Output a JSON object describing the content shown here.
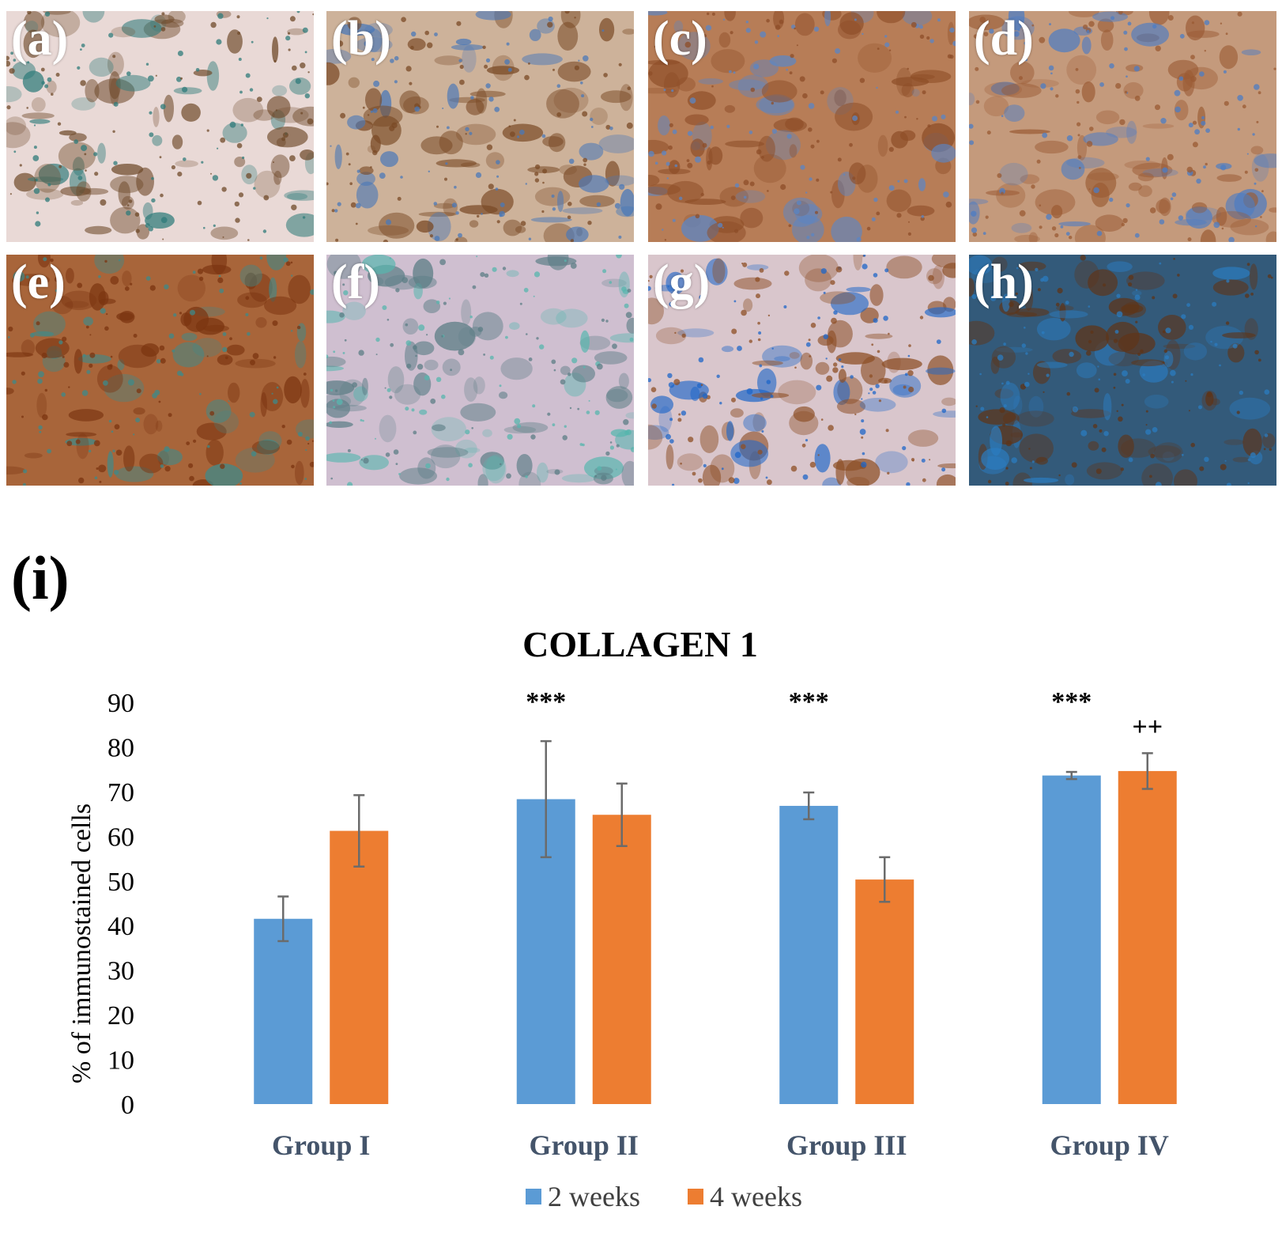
{
  "panels": [
    {
      "label": "(a)",
      "bg": "#e9d9d6",
      "stain": "#6f4a2a",
      "accent": "#2f7b7a"
    },
    {
      "label": "(b)",
      "bg": "#cdb29a",
      "stain": "#7a4a26",
      "accent": "#4a78b8"
    },
    {
      "label": "(c)",
      "bg": "#b77d57",
      "stain": "#8e4e28",
      "accent": "#5a86c6"
    },
    {
      "label": "(d)",
      "bg": "#c49a7c",
      "stain": "#9a5a33",
      "accent": "#4c7cc4"
    },
    {
      "label": "(e)",
      "bg": "#a8653a",
      "stain": "#7b3410",
      "accent": "#3e8a8a"
    },
    {
      "label": "(f)",
      "bg": "#cfbfd0",
      "stain": "#5c7e86",
      "accent": "#57b6ae"
    },
    {
      "label": "(g)",
      "bg": "#d9c6cc",
      "stain": "#8d4f26",
      "accent": "#1d66c8"
    },
    {
      "label": "(h)",
      "bg": "#335a7a",
      "stain": "#5e3418",
      "accent": "#2b7cc0"
    }
  ],
  "chart_label": "(i)",
  "chart_data": {
    "type": "bar",
    "title": "COLLAGEN 1",
    "ylabel": "% of immunostained cells",
    "xlabel": "",
    "ylim": [
      0,
      90
    ],
    "yticks": [
      0,
      10,
      20,
      30,
      40,
      50,
      60,
      70,
      80,
      90
    ],
    "categories": [
      "Group I",
      "Group II",
      "Group III",
      "Group IV"
    ],
    "series": [
      {
        "name": "2 weeks",
        "color": "#5b9bd5",
        "values": [
          41.5,
          68.3,
          66.8,
          73.6
        ],
        "errors": [
          5.0,
          13.0,
          3.0,
          0.8
        ]
      },
      {
        "name": "4 weeks",
        "color": "#ed7d31",
        "values": [
          61.2,
          64.8,
          50.3,
          74.6
        ],
        "errors": [
          8.0,
          7.0,
          5.0,
          4.0
        ]
      }
    ],
    "annotations": [
      {
        "category": "Group II",
        "series": "2 weeks",
        "text": "***"
      },
      {
        "category": "Group III",
        "series": "2 weeks",
        "text": "***"
      },
      {
        "category": "Group IV",
        "series": "2 weeks",
        "text": "***"
      },
      {
        "category": "Group IV",
        "series": "4 weeks",
        "text": "++"
      }
    ],
    "legend_position": "bottom",
    "grid": false
  }
}
